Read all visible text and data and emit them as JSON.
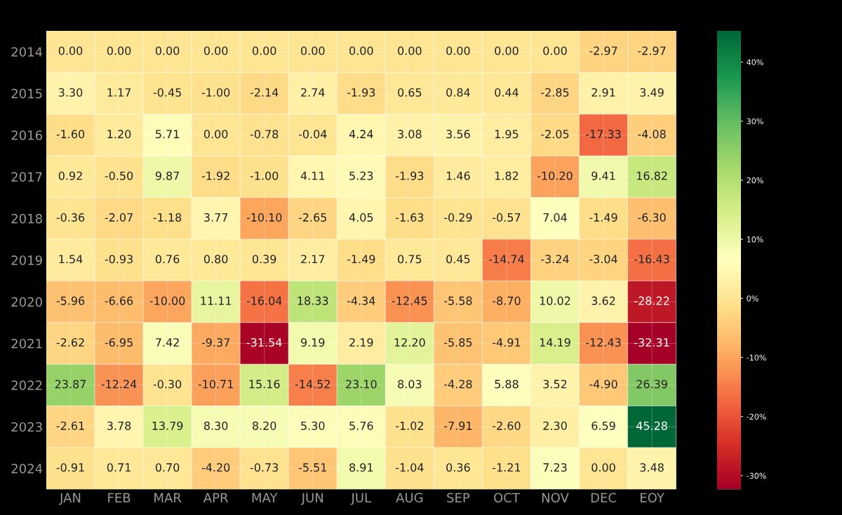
{
  "chart_data": {
    "type": "heatmap",
    "categories": [
      "JAN",
      "FEB",
      "MAR",
      "APR",
      "MAY",
      "JUN",
      "JUL",
      "AUG",
      "SEP",
      "OCT",
      "NOV",
      "DEC",
      "EOY"
    ],
    "y_categories": [
      "2014",
      "2015",
      "2016",
      "2017",
      "2018",
      "2019",
      "2020",
      "2021",
      "2022",
      "2023",
      "2024"
    ],
    "cells": [
      [
        0,
        0,
        0,
        0,
        0,
        0,
        0,
        0,
        0,
        0,
        0,
        -2.97,
        -2.97
      ],
      [
        3.3,
        1.17,
        -0.45,
        -1.0,
        -2.14,
        2.74,
        -1.93,
        0.65,
        0.84,
        0.44,
        -2.85,
        2.91,
        3.49
      ],
      [
        -1.6,
        1.2,
        5.71,
        0,
        -0.78,
        -0.04,
        4.24,
        3.08,
        3.56,
        1.95,
        -2.05,
        -17.33,
        -4.08
      ],
      [
        0.92,
        -0.5,
        9.87,
        -1.92,
        -1.0,
        4.11,
        5.23,
        -1.93,
        1.46,
        1.82,
        -10.2,
        9.41,
        16.82
      ],
      [
        -0.36,
        -2.07,
        -1.18,
        3.77,
        -10.1,
        -2.65,
        4.05,
        -1.63,
        -0.29,
        -0.57,
        7.04,
        -1.49,
        -6.3
      ],
      [
        1.54,
        -0.93,
        0.76,
        0.8,
        0.39,
        2.17,
        -1.49,
        0.75,
        0.45,
        -14.74,
        -3.24,
        -3.04,
        -16.43
      ],
      [
        -5.96,
        -6.66,
        -10.0,
        11.11,
        -16.04,
        18.33,
        -4.34,
        -12.45,
        -5.58,
        -8.7,
        10.02,
        3.62,
        -28.22
      ],
      [
        -2.62,
        -6.95,
        7.42,
        -9.37,
        -31.54,
        9.19,
        2.19,
        12.2,
        -5.85,
        -4.91,
        14.19,
        -12.43,
        -32.31
      ],
      [
        23.87,
        -12.24,
        -0.3,
        -10.71,
        15.16,
        -14.52,
        23.1,
        8.03,
        -4.28,
        5.88,
        3.52,
        -4.9,
        26.39
      ],
      [
        -2.61,
        3.78,
        13.79,
        8.3,
        8.2,
        5.3,
        5.76,
        -1.02,
        -7.91,
        -2.6,
        2.3,
        6.59,
        45.28
      ],
      [
        -0.91,
        0.71,
        0.7,
        -4.2,
        -0.73,
        -5.51,
        8.91,
        -1.04,
        0.36,
        -1.21,
        7.23,
        0,
        3.48
      ]
    ],
    "cell_labels": [
      [
        "0.00",
        "0.00",
        "0.00",
        "0.00",
        "0.00",
        "0.00",
        "0.00",
        "0.00",
        "0.00",
        "0.00",
        "0.00",
        "-2.97",
        "-2.97"
      ],
      [
        "3.30",
        "1.17",
        "-0.45",
        "-1.00",
        "-2.14",
        "2.74",
        "-1.93",
        "0.65",
        "0.84",
        "0.44",
        "-2.85",
        "2.91",
        "3.49"
      ],
      [
        "-1.60",
        "1.20",
        "5.71",
        "0.00",
        "-0.78",
        "-0.04",
        "4.24",
        "3.08",
        "3.56",
        "1.95",
        "-2.05",
        "-17.33",
        "-4.08"
      ],
      [
        "0.92",
        "-0.50",
        "9.87",
        "-1.92",
        "-1.00",
        "4.11",
        "5.23",
        "-1.93",
        "1.46",
        "1.82",
        "-10.20",
        "9.41",
        "16.82"
      ],
      [
        "-0.36",
        "-2.07",
        "-1.18",
        "3.77",
        "-10.10",
        "-2.65",
        "4.05",
        "-1.63",
        "-0.29",
        "-0.57",
        "7.04",
        "-1.49",
        "-6.30"
      ],
      [
        "1.54",
        "-0.93",
        "0.76",
        "0.80",
        "0.39",
        "2.17",
        "-1.49",
        "0.75",
        "0.45",
        "-14.74",
        "-3.24",
        "-3.04",
        "-16.43"
      ],
      [
        "-5.96",
        "-6.66",
        "-10.00",
        "11.11",
        "-16.04",
        "18.33",
        "-4.34",
        "-12.45",
        "-5.58",
        "-8.70",
        "10.02",
        "3.62",
        "-28.22"
      ],
      [
        "-2.62",
        "-6.95",
        "7.42",
        "-9.37",
        "-31.54",
        "9.19",
        "2.19",
        "12.20",
        "-5.85",
        "-4.91",
        "14.19",
        "-12.43",
        "-32.31"
      ],
      [
        "23.87",
        "-12.24",
        "-0.30",
        "-10.71",
        "15.16",
        "-14.52",
        "23.10",
        "8.03",
        "-4.28",
        "5.88",
        "3.52",
        "-4.90",
        "26.39"
      ],
      [
        "-2.61",
        "3.78",
        "13.79",
        "8.30",
        "8.20",
        "5.30",
        "5.76",
        "-1.02",
        "-7.91",
        "-2.60",
        "2.30",
        "6.59",
        "45.28"
      ],
      [
        "-0.91",
        "0.71",
        "0.70",
        "-4.20",
        "-0.73",
        "-5.51",
        "8.91",
        "-1.04",
        "0.36",
        "-1.21",
        "7.23",
        "0.00",
        "3.48"
      ]
    ],
    "clim": [
      -32.31,
      45.28
    ],
    "cticks": [
      {
        "value": -30,
        "label": "-30%"
      },
      {
        "value": -20,
        "label": "-20%"
      },
      {
        "value": -10,
        "label": "-10%"
      },
      {
        "value": 0,
        "label": "0%"
      },
      {
        "value": 10,
        "label": "10%"
      },
      {
        "value": 20,
        "label": "20%"
      },
      {
        "value": 30,
        "label": "30%"
      },
      {
        "value": 40,
        "label": "40%"
      }
    ],
    "grid": true
  }
}
